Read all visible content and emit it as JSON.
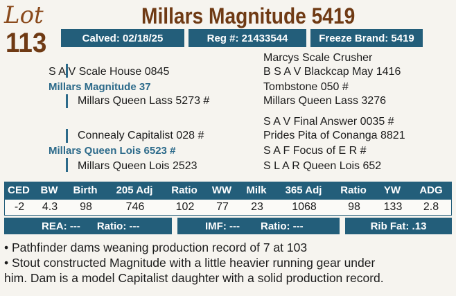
{
  "lot": {
    "label": "Lot",
    "number": "113"
  },
  "animal": {
    "name": "Millars Magnitude 5419"
  },
  "info": {
    "calved": "Calved: 02/18/25",
    "reg": "Reg #: 21433544",
    "freeze": "Freeze Brand: 5419"
  },
  "pedigree": {
    "sss": "Marcys Scale Crusher",
    "ss": "S A V Scale House 0845",
    "ssd": "B S A V Blackcap May 1416",
    "sire": "Millars Magnitude 37",
    "sds": "Tombstone 050 #",
    "sd": "Millars Queen Lass 5273 #",
    "sdd": "Millars Queen Lass 3276",
    "dss": "S A V Final Answer 0035 #",
    "ds": "Connealy Capitalist 028 #",
    "dsd": "Prides Pita of Conanga 8821",
    "dam": "Millars Queen Lois 6523 #",
    "dds": "S A F Focus of E R #",
    "dd": "Millars Queen Lois 2523",
    "ddd": "S L A R Queen Lois 652"
  },
  "epd": {
    "headers": [
      "CED",
      "BW",
      "Birth",
      "205 Adj",
      "Ratio",
      "WW",
      "Milk",
      "365 Adj",
      "Ratio",
      "YW",
      "ADG"
    ],
    "values": [
      "-2",
      "4.3",
      "98",
      "746",
      "102",
      "77",
      "23",
      "1068",
      "98",
      "133",
      "2.8"
    ]
  },
  "carcass": {
    "rea": "REA: ---",
    "rea_ratio": "Ratio: ---",
    "imf": "IMF: ---",
    "imf_ratio": "Ratio: ---",
    "rib": "Rib Fat: .13"
  },
  "notes": [
    "• Pathfinder dams weaning production record of 7 at 103",
    "• Stout constructed Magnitude with a little heavier running gear under",
    "him. Dam is a model Capitalist daughter with a solid production record."
  ]
}
